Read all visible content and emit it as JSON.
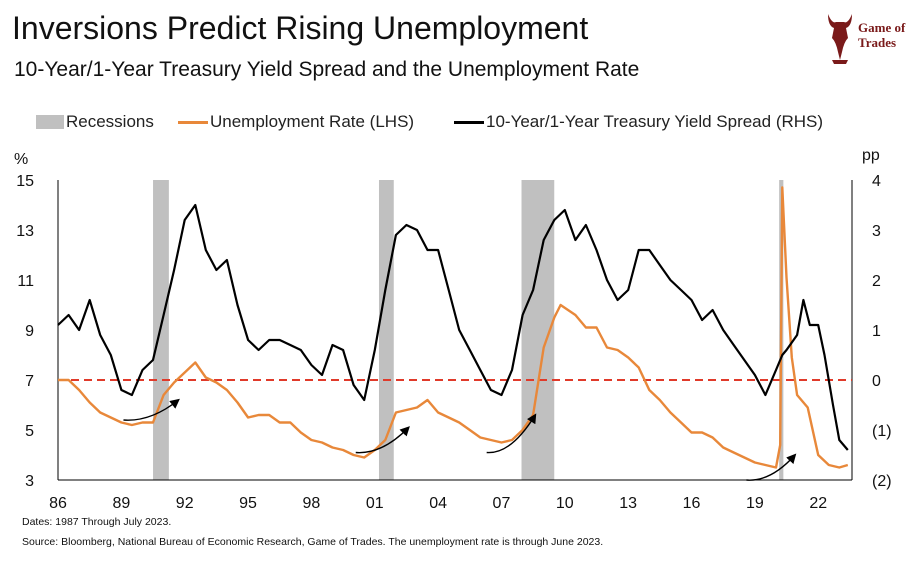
{
  "header": {
    "title": "Inversions Predict Rising Unemployment",
    "subtitle": "10-Year/1-Year Treasury Yield Spread and the Unemployment Rate"
  },
  "logo": {
    "line1": "Game of",
    "line2": "Trades",
    "icon": "bull-emblem-icon"
  },
  "legend": {
    "recessions": "Recessions",
    "unemployment": "Unemployment Rate (LHS)",
    "spread": "10-Year/1-Year Treasury Yield Spread (RHS)"
  },
  "colors": {
    "recession": "#c0c0c0",
    "unemployment": "#e8883a",
    "spread": "#000000",
    "zero_line": "#e03a2a",
    "logo": "#7a1a1a"
  },
  "footer": {
    "dates": "Dates: 1987 Through July 2023.",
    "source": "Source: Bloomberg, National Bureau of Economic Research, Game of Trades. The unemployment rate is through June 2023."
  },
  "chart_data": {
    "type": "line",
    "title": "Inversions Predict Rising Unemployment",
    "left_axis": {
      "unit_label": "%",
      "min": 3,
      "max": 15,
      "ticks": [
        3,
        5,
        7,
        9,
        11,
        13,
        15
      ],
      "tick_labels": [
        "3",
        "5",
        "7",
        "9",
        "11",
        "13",
        "15"
      ]
    },
    "right_axis": {
      "unit_label": "pp",
      "min": -2,
      "max": 4,
      "ticks": [
        -2,
        -1,
        0,
        1,
        2,
        3,
        4
      ],
      "tick_labels": [
        "(2)",
        "(1)",
        "0",
        "1",
        "2",
        "3",
        "4"
      ]
    },
    "x_axis": {
      "min": 1986.0,
      "max": 2023.6,
      "ticks": [
        1986,
        1989,
        1992,
        1995,
        1998,
        2001,
        2004,
        2007,
        2010,
        2013,
        2016,
        2019,
        2022
      ],
      "tick_labels": [
        "86",
        "89",
        "92",
        "95",
        "98",
        "01",
        "04",
        "07",
        "10",
        "13",
        "16",
        "19",
        "22"
      ]
    },
    "recessions": [
      [
        1990.5,
        1991.25
      ],
      [
        2001.2,
        2001.9
      ],
      [
        2007.95,
        2009.5
      ],
      [
        2020.15,
        2020.35
      ]
    ],
    "zero_line": {
      "axis": "right",
      "value": 0,
      "style": "dashed"
    },
    "series": [
      {
        "name": "Unemployment Rate (LHS)",
        "axis": "left",
        "x": [
          1986.0,
          1986.5,
          1987.0,
          1987.5,
          1988.0,
          1988.5,
          1989.0,
          1989.5,
          1990.0,
          1990.5,
          1991.0,
          1991.5,
          1992.0,
          1992.5,
          1993.0,
          1993.5,
          1994.0,
          1994.5,
          1995.0,
          1995.5,
          1996.0,
          1996.5,
          1997.0,
          1997.5,
          1998.0,
          1998.5,
          1999.0,
          1999.5,
          2000.0,
          2000.5,
          2001.0,
          2001.5,
          2002.0,
          2002.5,
          2003.0,
          2003.5,
          2004.0,
          2004.5,
          2005.0,
          2005.5,
          2006.0,
          2006.5,
          2007.0,
          2007.5,
          2008.0,
          2008.5,
          2009.0,
          2009.5,
          2009.8,
          2010.5,
          2011.0,
          2011.5,
          2012.0,
          2012.5,
          2013.0,
          2013.5,
          2014.0,
          2014.5,
          2015.0,
          2015.5,
          2016.0,
          2016.5,
          2017.0,
          2017.5,
          2018.0,
          2018.5,
          2019.0,
          2019.5,
          2020.0,
          2020.2,
          2020.3,
          2020.5,
          2020.75,
          2021.0,
          2021.5,
          2022.0,
          2022.5,
          2023.0,
          2023.4
        ],
        "values": [
          7.0,
          7.0,
          6.6,
          6.1,
          5.7,
          5.5,
          5.3,
          5.2,
          5.3,
          5.3,
          6.4,
          6.9,
          7.3,
          7.7,
          7.1,
          6.9,
          6.6,
          6.1,
          5.5,
          5.6,
          5.6,
          5.3,
          5.3,
          4.9,
          4.6,
          4.5,
          4.3,
          4.2,
          4.0,
          3.9,
          4.2,
          4.6,
          5.7,
          5.8,
          5.9,
          6.2,
          5.7,
          5.5,
          5.3,
          5.0,
          4.7,
          4.6,
          4.5,
          4.6,
          5.0,
          5.6,
          8.3,
          9.5,
          10.0,
          9.6,
          9.1,
          9.1,
          8.3,
          8.2,
          7.9,
          7.5,
          6.6,
          6.2,
          5.7,
          5.3,
          4.9,
          4.9,
          4.7,
          4.3,
          4.1,
          3.9,
          3.7,
          3.6,
          3.5,
          4.4,
          14.7,
          11.1,
          7.9,
          6.4,
          5.9,
          4.0,
          3.6,
          3.5,
          3.6
        ]
      },
      {
        "name": "10-Year/1-Year Treasury Yield Spread (RHS)",
        "axis": "right",
        "x": [
          1986.0,
          1986.5,
          1987.0,
          1987.5,
          1988.0,
          1988.5,
          1989.0,
          1989.5,
          1990.0,
          1990.5,
          1991.0,
          1991.5,
          1992.0,
          1992.5,
          1993.0,
          1993.5,
          1994.0,
          1994.5,
          1995.0,
          1995.5,
          1996.0,
          1996.5,
          1997.0,
          1997.5,
          1998.0,
          1998.5,
          1999.0,
          1999.5,
          2000.0,
          2000.5,
          2001.0,
          2001.5,
          2002.0,
          2002.5,
          2003.0,
          2003.5,
          2004.0,
          2004.5,
          2005.0,
          2005.5,
          2006.0,
          2006.5,
          2007.0,
          2007.5,
          2008.0,
          2008.5,
          2009.0,
          2009.5,
          2010.0,
          2010.5,
          2011.0,
          2011.5,
          2012.0,
          2012.5,
          2013.0,
          2013.5,
          2014.0,
          2014.5,
          2015.0,
          2015.5,
          2016.0,
          2016.5,
          2017.0,
          2017.5,
          2018.0,
          2018.5,
          2019.0,
          2019.5,
          2020.0,
          2020.3,
          2020.5,
          2021.0,
          2021.3,
          2021.6,
          2022.0,
          2022.3,
          2022.7,
          2023.0,
          2023.4
        ],
        "values": [
          1.1,
          1.3,
          1.0,
          1.6,
          0.9,
          0.5,
          -0.2,
          -0.3,
          0.2,
          0.4,
          1.3,
          2.2,
          3.2,
          3.5,
          2.6,
          2.2,
          2.4,
          1.5,
          0.8,
          0.6,
          0.8,
          0.8,
          0.7,
          0.6,
          0.3,
          0.1,
          0.7,
          0.6,
          -0.1,
          -0.4,
          0.6,
          1.8,
          2.9,
          3.1,
          3.0,
          2.6,
          2.6,
          1.8,
          1.0,
          0.6,
          0.2,
          -0.2,
          -0.3,
          0.2,
          1.3,
          1.8,
          2.8,
          3.2,
          3.4,
          2.8,
          3.1,
          2.6,
          2.0,
          1.6,
          1.8,
          2.6,
          2.6,
          2.3,
          2.0,
          1.8,
          1.6,
          1.2,
          1.4,
          1.0,
          0.7,
          0.4,
          0.1,
          -0.3,
          0.2,
          0.5,
          0.6,
          0.9,
          1.6,
          1.1,
          1.1,
          0.5,
          -0.5,
          -1.2,
          -1.4
        ]
      }
    ],
    "annotations": [
      {
        "type": "arrow",
        "from": [
          1989.1,
          5.4
        ],
        "to": [
          1991.7,
          6.2
        ]
      },
      {
        "type": "arrow",
        "from": [
          2000.1,
          4.1
        ],
        "to": [
          2002.6,
          5.1
        ]
      },
      {
        "type": "arrow",
        "from": [
          2006.3,
          4.1
        ],
        "to": [
          2008.6,
          5.6
        ]
      },
      {
        "type": "arrow",
        "from": [
          2018.6,
          3.0
        ],
        "to": [
          2020.9,
          4.0
        ]
      }
    ]
  }
}
